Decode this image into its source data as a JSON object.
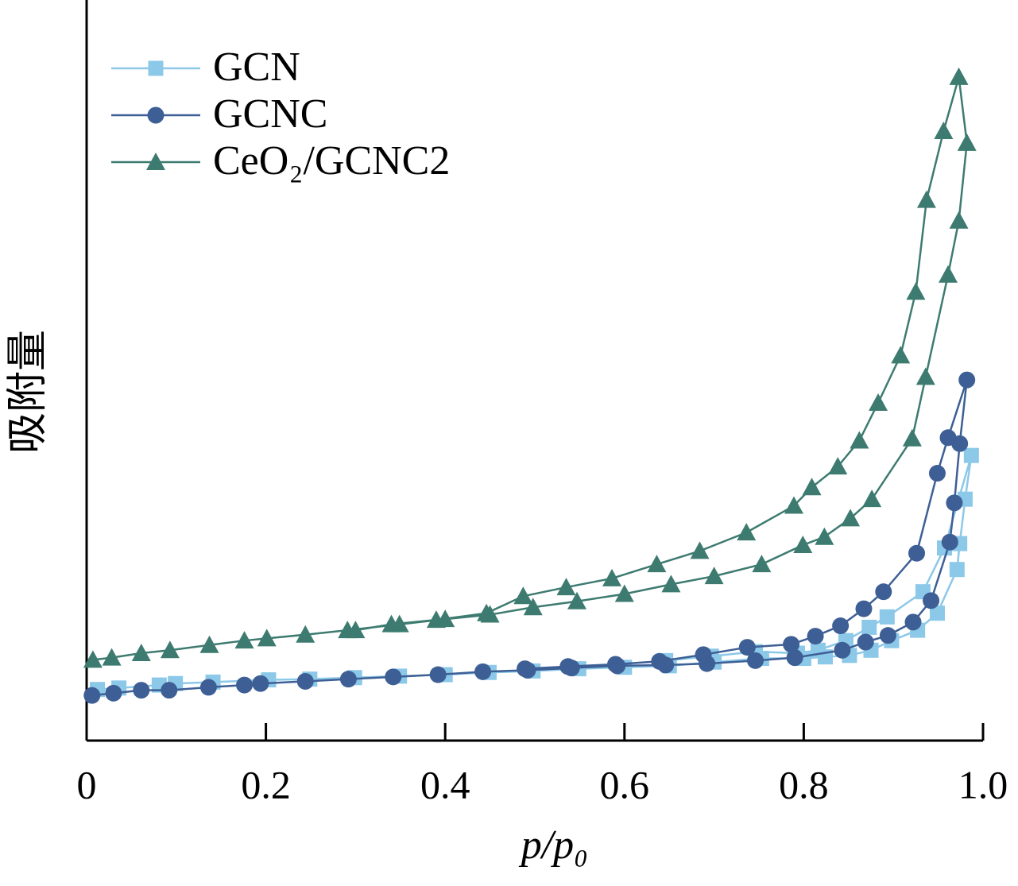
{
  "chart_data": {
    "type": "line",
    "xlabel": "p/p₀",
    "ylabel": "吸附量",
    "xlim": [
      0,
      1
    ],
    "xticks": [
      0,
      0.2,
      0.4,
      0.6,
      0.8,
      {
        "value": 1,
        "label": "1.0"
      }
    ],
    "ylim": [
      0,
      100
    ],
    "legend": "top-left",
    "series": [
      {
        "name": "GCN",
        "color": "#8cc8e8",
        "marker": "square",
        "x": [
          0.012,
          0.036,
          0.081,
          0.099,
          0.141,
          0.203,
          0.249,
          0.299,
          0.349,
          0.4,
          0.449,
          0.498,
          0.549,
          0.6,
          0.65,
          0.7,
          0.753,
          0.8,
          0.824,
          0.851,
          0.875,
          0.898,
          0.927,
          0.949,
          0.971,
          0.974,
          0.98,
          0.987,
          0.957,
          0.933,
          0.893,
          0.873,
          0.847,
          0.816,
          0.793,
          0.746,
          0.697,
          0.646
        ],
        "values": [
          6.9,
          7.1,
          7.5,
          7.7,
          7.9,
          8.2,
          8.3,
          8.5,
          8.7,
          8.9,
          9.2,
          9.4,
          9.7,
          9.9,
          10.1,
          10.6,
          11.1,
          11.1,
          11.3,
          11.5,
          12.2,
          13.5,
          14.9,
          17.2,
          23.1,
          26.6,
          32.6,
          38.5,
          26.0,
          20.1,
          16.7,
          15.3,
          13.5,
          12.2,
          11.8,
          12.0,
          11.4,
          10.8
        ]
      },
      {
        "name": "GCNC",
        "color": "#3d5f95",
        "marker": "circle",
        "x": [
          0.006,
          0.03,
          0.061,
          0.092,
          0.136,
          0.176,
          0.194,
          0.244,
          0.292,
          0.342,
          0.392,
          0.442,
          0.492,
          0.541,
          0.592,
          0.646,
          0.692,
          0.746,
          0.79,
          0.843,
          0.869,
          0.894,
          0.922,
          0.942,
          0.963,
          0.968,
          0.974,
          0.982,
          0.961,
          0.949,
          0.926,
          0.889,
          0.867,
          0.841,
          0.813,
          0.786,
          0.737,
          0.688,
          0.639,
          0.59,
          0.537,
          0.489
        ],
        "values": [
          6.1,
          6.4,
          6.8,
          6.8,
          7.2,
          7.5,
          7.7,
          8.0,
          8.3,
          8.6,
          8.9,
          9.3,
          9.5,
          9.8,
          10.1,
          10.2,
          10.4,
          10.8,
          11.2,
          12.2,
          13.3,
          14.2,
          16.0,
          18.9,
          26.8,
          32.1,
          40.1,
          48.7,
          40.9,
          36.1,
          25.3,
          20.1,
          17.8,
          15.5,
          14.1,
          13.0,
          12.6,
          11.6,
          10.7,
          10.3,
          10.0,
          9.7
        ]
      },
      {
        "name": "CeO₂/GCNC2",
        "color": "#3d7b70",
        "marker": "triangle",
        "x": [
          0.007,
          0.028,
          0.061,
          0.093,
          0.137,
          0.176,
          0.201,
          0.244,
          0.291,
          0.349,
          0.4,
          0.45,
          0.498,
          0.547,
          0.6,
          0.652,
          0.7,
          0.753,
          0.799,
          0.823,
          0.852,
          0.876,
          0.921,
          0.936,
          0.961,
          0.973,
          0.982,
          0.973,
          0.956,
          0.937,
          0.925,
          0.908,
          0.883,
          0.862,
          0.838,
          0.809,
          0.789,
          0.736,
          0.684,
          0.636,
          0.586,
          0.535,
          0.487,
          0.446,
          0.39,
          0.34,
          0.3
        ],
        "values": [
          10.9,
          11.2,
          11.8,
          12.2,
          12.9,
          13.5,
          13.8,
          14.3,
          14.9,
          15.7,
          16.4,
          17.0,
          18.0,
          18.8,
          19.8,
          21.1,
          22.2,
          23.8,
          26.4,
          27.5,
          30.0,
          32.6,
          40.8,
          49.1,
          62.9,
          70.2,
          80.7,
          89.6,
          82.3,
          73.0,
          60.6,
          52.0,
          45.6,
          40.5,
          37.0,
          34.2,
          31.7,
          28.1,
          25.6,
          23.8,
          21.9,
          20.7,
          19.5,
          17.2,
          16.3,
          15.7,
          14.9
        ]
      }
    ]
  }
}
